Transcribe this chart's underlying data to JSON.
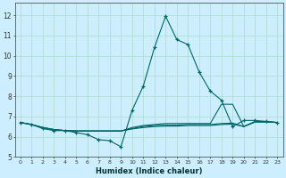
{
  "title": "",
  "xlabel": "Humidex (Indice chaleur)",
  "bg_color": "#cceeff",
  "grid_color": "#aaddcc",
  "line_color": "#006666",
  "xlim": [
    -0.5,
    23.5
  ],
  "ylim": [
    5.0,
    12.6
  ],
  "yticks": [
    5,
    6,
    7,
    8,
    9,
    10,
    11,
    12
  ],
  "xticks": [
    0,
    1,
    2,
    3,
    4,
    5,
    6,
    7,
    8,
    9,
    10,
    11,
    12,
    13,
    14,
    15,
    16,
    17,
    18,
    19,
    20,
    21,
    22,
    23
  ],
  "series": [
    {
      "x": [
        0,
        1,
        2,
        3,
        4,
        5,
        6,
        7,
        8,
        9,
        10,
        11,
        12,
        13,
        14,
        15,
        16,
        17,
        18,
        19,
        20,
        21,
        22,
        23
      ],
      "y": [
        6.7,
        6.6,
        6.4,
        6.3,
        6.3,
        6.2,
        6.1,
        5.85,
        5.8,
        5.5,
        7.3,
        8.5,
        10.4,
        11.95,
        10.8,
        10.55,
        9.2,
        8.25,
        7.8,
        6.5,
        6.8,
        6.8,
        6.75,
        6.7
      ],
      "linestyle": "-",
      "marker": true
    },
    {
      "x": [
        0,
        1,
        2,
        3,
        4,
        5,
        6,
        7,
        8,
        9,
        10,
        11,
        12,
        13,
        14,
        15,
        16,
        17,
        18,
        19,
        20,
        21,
        22,
        23
      ],
      "y": [
        6.7,
        6.6,
        6.45,
        6.35,
        6.3,
        6.28,
        6.28,
        6.28,
        6.28,
        6.28,
        6.45,
        6.55,
        6.6,
        6.65,
        6.65,
        6.65,
        6.65,
        6.65,
        7.6,
        7.6,
        6.5,
        6.75,
        6.75,
        6.7
      ],
      "linestyle": "-",
      "marker": false
    },
    {
      "x": [
        0,
        1,
        2,
        3,
        4,
        5,
        6,
        7,
        8,
        9,
        10,
        11,
        12,
        13,
        14,
        15,
        16,
        17,
        18,
        19,
        20,
        21,
        22,
        23
      ],
      "y": [
        6.7,
        6.6,
        6.45,
        6.35,
        6.3,
        6.28,
        6.28,
        6.28,
        6.28,
        6.28,
        6.38,
        6.45,
        6.5,
        6.52,
        6.52,
        6.55,
        6.55,
        6.55,
        6.6,
        6.62,
        6.5,
        6.72,
        6.72,
        6.7
      ],
      "linestyle": "-",
      "marker": false
    },
    {
      "x": [
        0,
        1,
        2,
        3,
        4,
        5,
        6,
        7,
        8,
        9,
        10,
        11,
        12,
        13,
        14,
        15,
        16,
        17,
        18,
        19,
        20,
        21,
        22,
        23
      ],
      "y": [
        6.7,
        6.6,
        6.45,
        6.35,
        6.3,
        6.28,
        6.28,
        6.28,
        6.28,
        6.28,
        6.4,
        6.5,
        6.55,
        6.57,
        6.57,
        6.6,
        6.6,
        6.6,
        6.65,
        6.67,
        6.5,
        6.73,
        6.73,
        6.7
      ],
      "linestyle": "-",
      "marker": false
    }
  ]
}
